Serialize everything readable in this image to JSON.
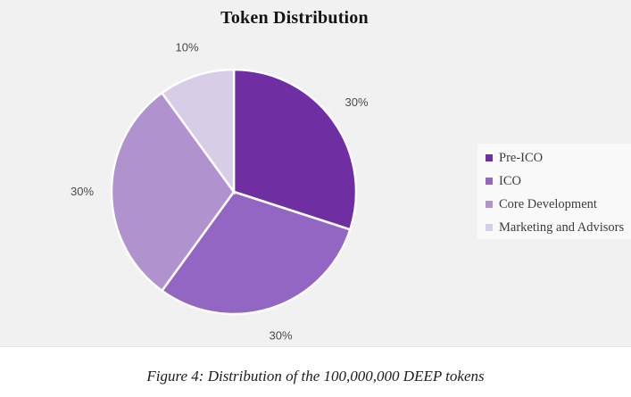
{
  "chart_data": {
    "type": "pie",
    "title": "Token Distribution",
    "slices": [
      {
        "label": "Pre-ICO",
        "value": 30,
        "percent_label": "30%",
        "color": "#6F2FA3"
      },
      {
        "label": "ICO",
        "value": 30,
        "percent_label": "30%",
        "color": "#9466C4"
      },
      {
        "label": "Core Development",
        "value": 30,
        "percent_label": "30%",
        "color": "#B093CE"
      },
      {
        "label": "Marketing and Advisors",
        "value": 10,
        "percent_label": "10%",
        "color": "#D8CDE7"
      }
    ],
    "start_angle_deg": 0,
    "direction": "clockwise",
    "slice_border_color": "#FFFFFF",
    "legend_position": "right",
    "labels_position": "outside"
  },
  "caption": "Figure 4: Distribution of the 100,000,000 DEEP tokens",
  "colors": {
    "panel_background": "#F1F1F2",
    "legend_background": "#F9F9F9",
    "percent_label_text": "#4A4A4A",
    "legend_text": "#3B3B3B",
    "title_text": "#141414"
  }
}
